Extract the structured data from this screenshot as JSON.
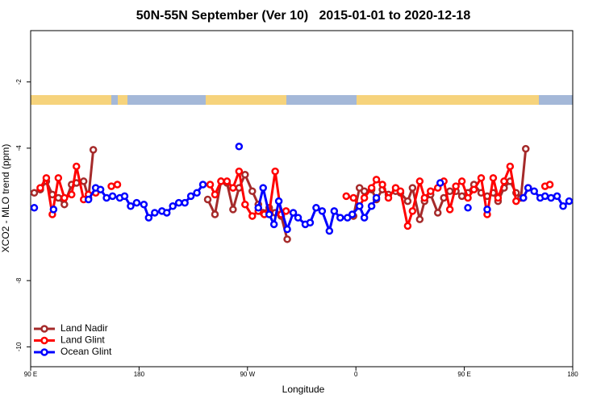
{
  "chart_data": {
    "type": "line",
    "title": "50N-55N September (Ver 10)   2015-01-01 to 2020-12-18",
    "xlabel": "Longitude",
    "ylabel": "XCO2 - MLO trend (ppm)",
    "xlim": [
      90,
      540
    ],
    "xticks": [
      {
        "value": 90,
        "label": "90 E"
      },
      180,
      {
        "value": 270,
        "label": "90 W"
      },
      {
        "value": 360,
        "label": "0"
      },
      {
        "value": 450,
        "label": "90 E"
      },
      {
        "value": 540,
        "label": "180"
      }
    ],
    "ylim": [
      -10.6,
      -0.45
    ],
    "yticks": [
      -10,
      -8,
      -4,
      -2
    ],
    "legend": "bottom-left",
    "series": [
      {
        "name": "Land Nadir",
        "color": "#a52a2a",
        "x": [
          93,
          98,
          103,
          108,
          113,
          118,
          124,
          128,
          134,
          138,
          142,
          190,
          237,
          243,
          248,
          253,
          258,
          263,
          268,
          274,
          279,
          283,
          288,
          293,
          298,
          303,
          330,
          358,
          363,
          367,
          373,
          377,
          382,
          387,
          393,
          397,
          403,
          407,
          413,
          417,
          422,
          428,
          433,
          438,
          443,
          448,
          453,
          458,
          464,
          469,
          474,
          478,
          483,
          488,
          493,
          497,
          501
        ],
        "values": [
          -5.35,
          -5.25,
          -5.0,
          -5.4,
          -5.5,
          -5.7,
          -5.1,
          -5.05,
          -5.0,
          -5.5,
          -4.05,
          null,
          -5.55,
          -6.0,
          -5.0,
          -5.05,
          -5.85,
          -5.2,
          -4.8,
          -5.3,
          -5.7,
          -5.95,
          -5.8,
          -5.95,
          -6.05,
          -6.75,
          null,
          -6.05,
          -5.2,
          -5.3,
          -5.25,
          -5.55,
          -5.25,
          -5.4,
          -5.3,
          -5.35,
          -5.6,
          -5.2,
          -6.15,
          -5.6,
          -5.4,
          -5.95,
          -5.5,
          -5.3,
          -5.3,
          -5.45,
          -5.35,
          -5.1,
          -5.35,
          -5.45,
          -5.35,
          -5.6,
          -5.2,
          -5.0,
          -5.35,
          -5.5,
          -4.02
        ]
      },
      {
        "name": "Land Glint",
        "color": "#ff0000",
        "x": [
          98,
          103,
          108,
          113,
          118,
          124,
          128,
          134,
          138,
          144,
          150,
          157,
          162,
          200,
          239,
          243,
          248,
          253,
          258,
          263,
          268,
          274,
          279,
          284,
          288,
          293,
          298,
          302,
          330,
          352,
          358,
          363,
          367,
          373,
          377,
          382,
          387,
          393,
          397,
          403,
          407,
          413,
          417,
          422,
          428,
          433,
          438,
          443,
          448,
          453,
          458,
          464,
          469,
          474,
          478,
          483,
          488,
          493,
          499,
          503,
          510,
          517,
          521
        ],
        "values": [
          -5.2,
          -4.9,
          -6.0,
          -4.9,
          -5.5,
          -5.4,
          -4.55,
          -5.55,
          -5.4,
          -5.35,
          null,
          -5.15,
          -5.1,
          null,
          -5.1,
          -5.4,
          -5.0,
          -5.0,
          -5.2,
          -4.7,
          -5.7,
          -6.05,
          -5.9,
          -6.0,
          -5.95,
          -4.7,
          -6.0,
          -5.9,
          null,
          -5.45,
          -5.5,
          -5.75,
          -5.5,
          -5.2,
          -4.95,
          -5.1,
          -5.5,
          -5.2,
          -5.3,
          -6.35,
          -5.9,
          -5.0,
          -5.5,
          -5.3,
          -5.2,
          -5.0,
          -5.85,
          -5.15,
          -5.0,
          -5.5,
          -5.25,
          -4.9,
          -6.0,
          -4.9,
          -5.5,
          -5.0,
          -4.55,
          -5.6,
          -5.5,
          -5.2,
          null,
          -5.15,
          -5.1
        ]
      },
      {
        "name": "Ocean Glint",
        "color": "#0000ff",
        "x": [
          93,
          100,
          109,
          120,
          138,
          144,
          148,
          153,
          158,
          164,
          168,
          173,
          178,
          184,
          188,
          193,
          199,
          203,
          208,
          213,
          218,
          223,
          228,
          233,
          250,
          263,
          270,
          279,
          283,
          288,
          292,
          296,
          303,
          308,
          312,
          318,
          322,
          327,
          332,
          338,
          342,
          347,
          353,
          357,
          363,
          367,
          373,
          377,
          400,
          430,
          440,
          453,
          460,
          469,
          480,
          499,
          503,
          508,
          513,
          517,
          522,
          527,
          532,
          537
        ],
        "values": [
          -5.8,
          null,
          -5.85,
          null,
          -5.55,
          -5.2,
          -5.25,
          -5.5,
          -5.45,
          -5.5,
          -5.45,
          -5.75,
          -5.65,
          -5.7,
          -6.1,
          -5.95,
          -5.9,
          -5.95,
          -5.75,
          -5.65,
          -5.65,
          -5.45,
          -5.35,
          -5.1,
          null,
          -3.95,
          null,
          -5.8,
          -5.2,
          -6.0,
          -6.3,
          -5.6,
          -6.45,
          -5.95,
          -6.1,
          -6.3,
          -6.25,
          -5.8,
          -5.9,
          -6.5,
          -5.9,
          -6.1,
          -6.1,
          -6.0,
          -5.75,
          -6.1,
          -5.75,
          -5.5,
          null,
          -5.05,
          null,
          -5.8,
          null,
          -5.85,
          null,
          -5.5,
          -5.2,
          -5.3,
          -5.5,
          -5.45,
          -5.5,
          -5.45,
          -5.75,
          -5.6
        ]
      }
    ]
  }
}
